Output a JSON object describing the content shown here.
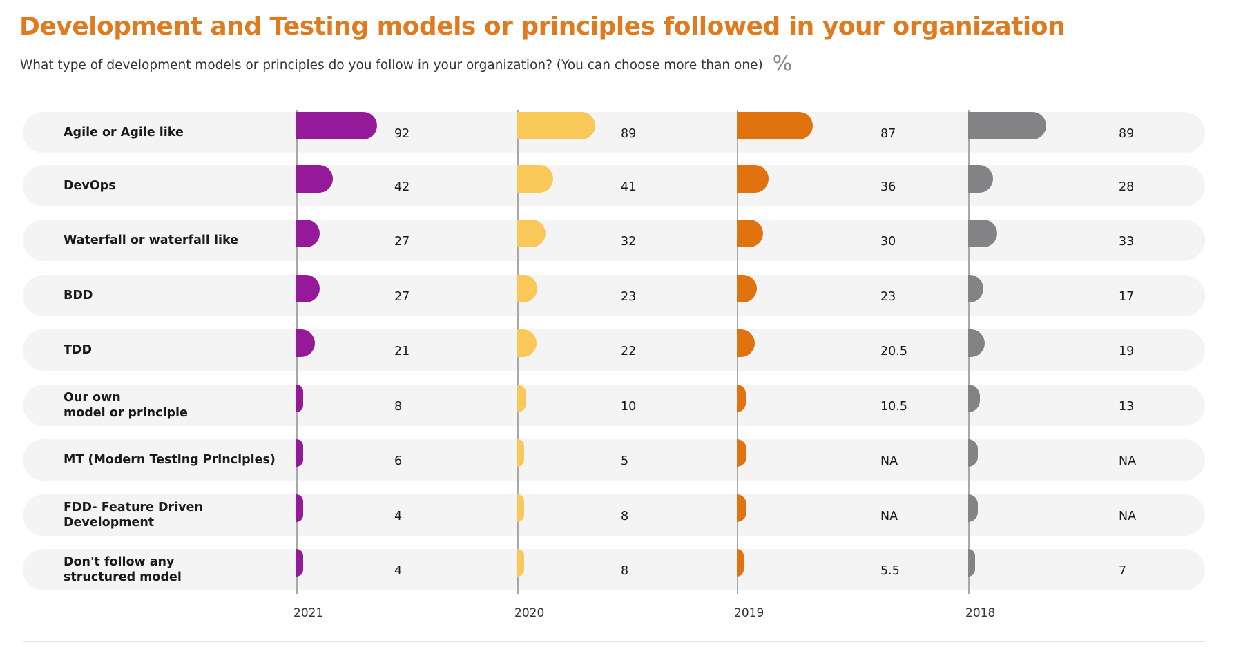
{
  "title": "Development and Testing models or principles followed in your organization",
  "subtitle": "What type of development models or principles do you follow in your organization? (You can choose more than one)",
  "unit_symbol": "%",
  "chart_data": {
    "type": "bar",
    "orientation": "horizontal",
    "categories": [
      "Agile or Agile like",
      "DevOps",
      "Waterfall or waterfall like",
      "BDD",
      "TDD",
      "Our own\nmodel or principle",
      "MT (Modern Testing Principles)",
      "FDD- Feature Driven\nDevelopment",
      "Don't follow any\nstructured model"
    ],
    "series": [
      {
        "name": "2021",
        "color": "#951a9a",
        "values": [
          92,
          42,
          27,
          27,
          21,
          8,
          6,
          4,
          4
        ],
        "labels": [
          "92",
          "42",
          "27",
          "27",
          "21",
          "8",
          "6",
          "4",
          "4"
        ]
      },
      {
        "name": "2020",
        "color": "#f9c858",
        "values": [
          89,
          41,
          32,
          23,
          22,
          10,
          5,
          8,
          8
        ],
        "labels": [
          "89",
          "41",
          "32",
          "23",
          "22",
          "10",
          "5",
          "8",
          "8"
        ]
      },
      {
        "name": "2019",
        "color": "#e0730f",
        "values": [
          87,
          36,
          30,
          23,
          20.5,
          10.5,
          null,
          null,
          5.5
        ],
        "labels": [
          "87",
          "36",
          "30",
          "23",
          "20.5",
          "10.5",
          "NA",
          "NA",
          "5.5"
        ]
      },
      {
        "name": "2018",
        "color": "#838386",
        "values": [
          89,
          28,
          33,
          17,
          19,
          13,
          null,
          null,
          7
        ],
        "labels": [
          "89",
          "28",
          "33",
          "17",
          "19",
          "13",
          "NA",
          "NA",
          "7"
        ]
      }
    ],
    "unit": "%",
    "grid": false,
    "legend": "bottom"
  }
}
